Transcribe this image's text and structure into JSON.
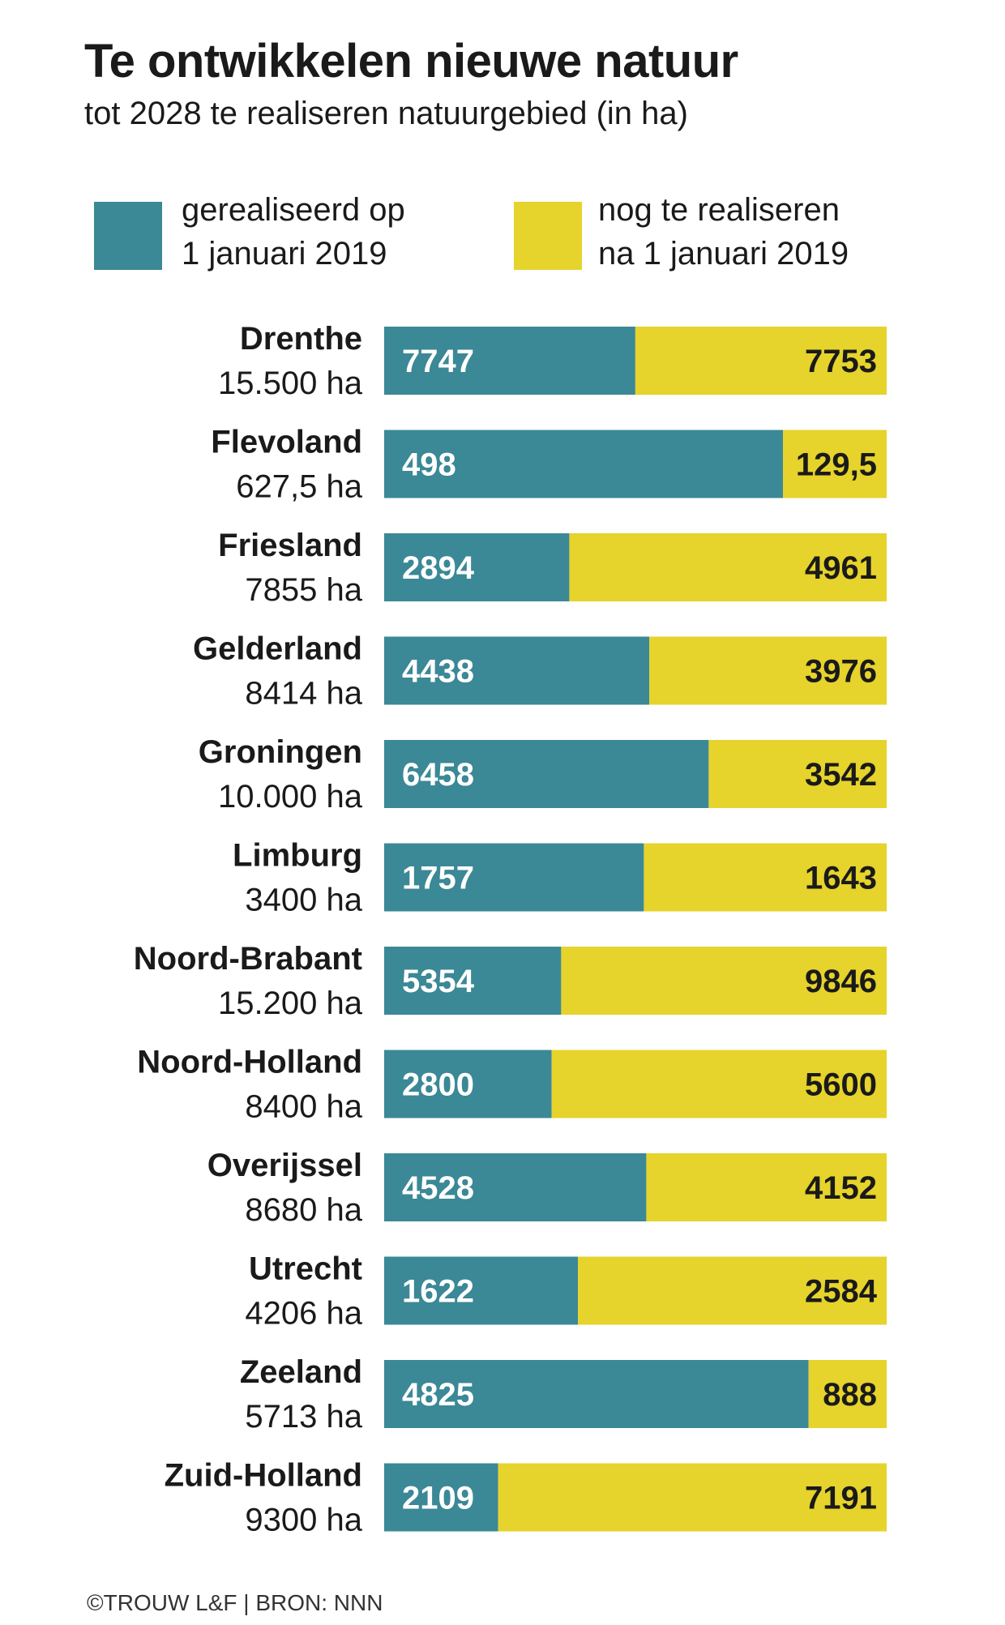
{
  "title": "Te ontwikkelen nieuwe natuur",
  "subtitle": "tot 2028 te realiseren natuurgebied (in ha)",
  "legend": [
    {
      "line1": "gerealiseerd op",
      "line2": "1 januari 2019",
      "color": "#3b8896"
    },
    {
      "line1": "nog te realiseren",
      "line2": "na 1 januari 2019",
      "color": "#e6d32b"
    }
  ],
  "footer": "©TROUW L&F | BRON: NNN",
  "chart_data": {
    "type": "bar",
    "stacked": true,
    "orientation": "horizontal",
    "title": "Te ontwikkelen nieuwe natuur",
    "categories": [
      "Drenthe",
      "Flevoland",
      "Friesland",
      "Gelderland",
      "Groningen",
      "Limburg",
      "Noord-Brabant",
      "Noord-Holland",
      "Overijssel",
      "Utrecht",
      "Zeeland",
      "Zuid-Holland"
    ],
    "totals": [
      "15.500 ha",
      "627,5 ha",
      "7855 ha",
      "8414 ha",
      "10.000 ha",
      "3400 ha",
      "15.200 ha",
      "8400 ha",
      "8680 ha",
      "4206 ha",
      "5713 ha",
      "9300 ha"
    ],
    "series": [
      {
        "name": "gerealiseerd op 1 januari 2019",
        "color": "#3b8896",
        "values": [
          7747,
          498,
          2894,
          4438,
          6458,
          1757,
          5354,
          2800,
          4528,
          1622,
          4825,
          2109
        ],
        "labels": [
          "7747",
          "498",
          "2894",
          "4438",
          "6458",
          "1757",
          "5354",
          "2800",
          "4528",
          "1622",
          "4825",
          "2109"
        ]
      },
      {
        "name": "nog te realiseren na 1 januari 2019",
        "color": "#e6d32b",
        "values": [
          7753,
          129.5,
          4961,
          3976,
          3542,
          1643,
          9846,
          5600,
          4152,
          2584,
          888,
          7191
        ],
        "labels": [
          "7753",
          "129,5",
          "4961",
          "3976",
          "3542",
          "1643",
          "9846",
          "5600",
          "4152",
          "2584",
          "888",
          "7191"
        ]
      }
    ],
    "normalized": true
  }
}
